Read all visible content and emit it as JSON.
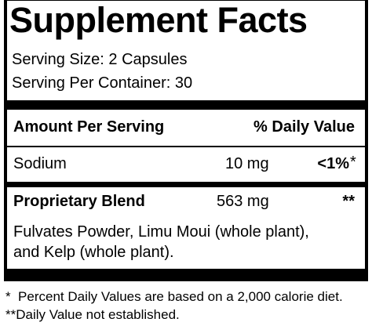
{
  "title": "Supplement Facts",
  "serving": [
    "Serving Size: 2 Capsules",
    "Serving Per Container: 30"
  ],
  "header": {
    "amount": "Amount Per Serving",
    "daily_value": "% Daily Value"
  },
  "rows": [
    {
      "name": "Sodium",
      "amount": "10 mg",
      "daily_value": "<1%",
      "footnote_mark": "*"
    },
    {
      "name": "Proprietary Blend",
      "amount": "563 mg",
      "daily_value": "**",
      "description": [
        "Fulvates Powder, Limu Moui (whole plant),",
        "and Kelp (whole plant)."
      ]
    }
  ],
  "footnotes": [
    "*  Percent Daily Values are based on a 2,000 calorie diet.",
    "**Daily Value not established."
  ]
}
